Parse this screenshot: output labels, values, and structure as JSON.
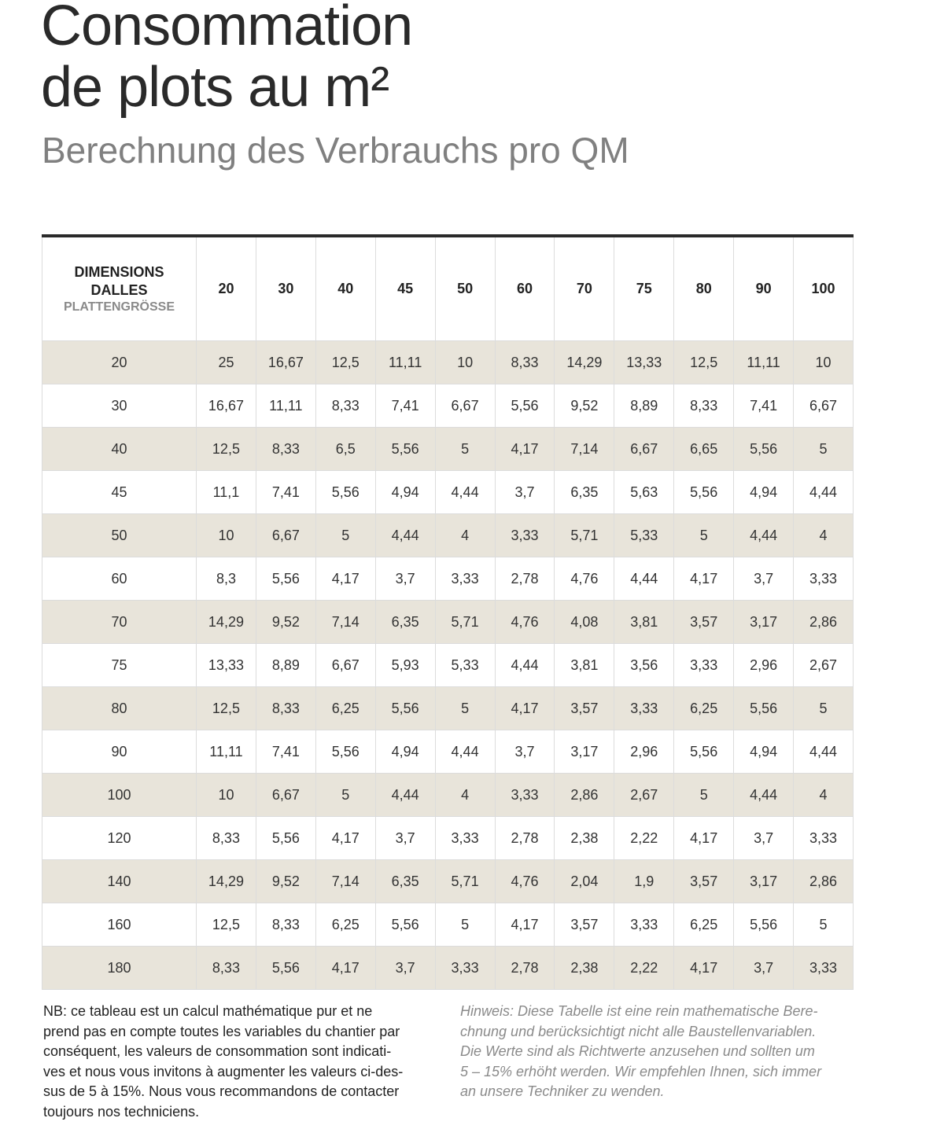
{
  "header": {
    "title": [
      "Consommation",
      "de plots au m²"
    ],
    "subtitle": "Berechnung des Verbrauchs pro QM"
  },
  "table": {
    "corner": {
      "title": "DIMENSIONS DALLES",
      "subtitle": "PLATTENGRÖSSE"
    },
    "columns": [
      "20",
      "30",
      "40",
      "45",
      "50",
      "60",
      "70",
      "75",
      "80",
      "90",
      "100"
    ],
    "rows": [
      {
        "label": "20",
        "cells": [
          "25",
          "16,67",
          "12,5",
          "11,11",
          "10",
          "8,33",
          "14,29",
          "13,33",
          "12,5",
          "11,11",
          "10"
        ]
      },
      {
        "label": "30",
        "cells": [
          "16,67",
          "11,11",
          "8,33",
          "7,41",
          "6,67",
          "5,56",
          "9,52",
          "8,89",
          "8,33",
          "7,41",
          "6,67"
        ]
      },
      {
        "label": "40",
        "cells": [
          "12,5",
          "8,33",
          "6,5",
          "5,56",
          "5",
          "4,17",
          "7,14",
          "6,67",
          "6,65",
          "5,56",
          "5"
        ]
      },
      {
        "label": "45",
        "cells": [
          "11,1",
          "7,41",
          "5,56",
          "4,94",
          "4,44",
          "3,7",
          "6,35",
          "5,63",
          "5,56",
          "4,94",
          "4,44"
        ]
      },
      {
        "label": "50",
        "cells": [
          "10",
          "6,67",
          "5",
          "4,44",
          "4",
          "3,33",
          "5,71",
          "5,33",
          "5",
          "4,44",
          "4"
        ]
      },
      {
        "label": "60",
        "cells": [
          "8,3",
          "5,56",
          "4,17",
          "3,7",
          "3,33",
          "2,78",
          "4,76",
          "4,44",
          "4,17",
          "3,7",
          "3,33"
        ]
      },
      {
        "label": "70",
        "cells": [
          "14,29",
          "9,52",
          "7,14",
          "6,35",
          "5,71",
          "4,76",
          "4,08",
          "3,81",
          "3,57",
          "3,17",
          "2,86"
        ]
      },
      {
        "label": "75",
        "cells": [
          "13,33",
          "8,89",
          "6,67",
          "5,93",
          "5,33",
          "4,44",
          "3,81",
          "3,56",
          "3,33",
          "2,96",
          "2,67"
        ]
      },
      {
        "label": "80",
        "cells": [
          "12,5",
          "8,33",
          "6,25",
          "5,56",
          "5",
          "4,17",
          "3,57",
          "3,33",
          "6,25",
          "5,56",
          "5"
        ]
      },
      {
        "label": "90",
        "cells": [
          "11,11",
          "7,41",
          "5,56",
          "4,94",
          "4,44",
          "3,7",
          "3,17",
          "2,96",
          "5,56",
          "4,94",
          "4,44"
        ]
      },
      {
        "label": "100",
        "cells": [
          "10",
          "6,67",
          "5",
          "4,44",
          "4",
          "3,33",
          "2,86",
          "2,67",
          "5",
          "4,44",
          "4"
        ]
      },
      {
        "label": "120",
        "cells": [
          "8,33",
          "5,56",
          "4,17",
          "3,7",
          "3,33",
          "2,78",
          "2,38",
          "2,22",
          "4,17",
          "3,7",
          "3,33"
        ]
      },
      {
        "label": "140",
        "cells": [
          "14,29",
          "9,52",
          "7,14",
          "6,35",
          "5,71",
          "4,76",
          "2,04",
          "1,9",
          "3,57",
          "3,17",
          "2,86"
        ]
      },
      {
        "label": "160",
        "cells": [
          "12,5",
          "8,33",
          "6,25",
          "5,56",
          "5",
          "4,17",
          "3,57",
          "3,33",
          "6,25",
          "5,56",
          "5"
        ]
      },
      {
        "label": "180",
        "cells": [
          "8,33",
          "5,56",
          "4,17",
          "3,7",
          "3,33",
          "2,78",
          "2,38",
          "2,22",
          "4,17",
          "3,7",
          "3,33"
        ]
      }
    ]
  },
  "notes": {
    "fr": [
      "NB: ce tableau est un calcul mathématique pur et ne",
      "prend pas en compte toutes les variables du chantier par",
      "conséquent, les valeurs de consommation sont indicati-",
      "ves et nous vous invitons à augmenter les valeurs ci-des-",
      "sus de 5 à 15%. Nous vous recommandons de contacter",
      "toujours nos techniciens."
    ],
    "de": [
      "Hinweis: Diese Tabelle ist eine rein mathematische Bere-",
      "chnung und berücksichtigt nicht alle Baustellenvariablen.",
      "Die Werte sind als Richtwerte anzusehen und sollten um",
      "5 – 15% erhöht werden. Wir empfehlen Ihnen, sich immer",
      "an unsere Techniker zu wenden."
    ]
  }
}
